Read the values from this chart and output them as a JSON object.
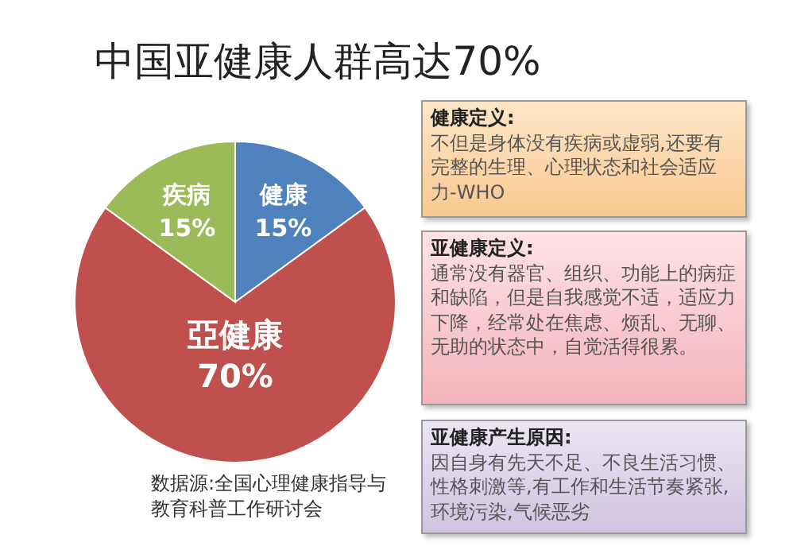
{
  "chart_data": [
    {
      "type": "pie",
      "title": "中国亚健康人群高达70%",
      "categories": [
        "健康",
        "亞健康",
        "疾病"
      ],
      "values": [
        15,
        70,
        15
      ],
      "colors": [
        "#4f81bd",
        "#c0504d",
        "#9bbb59"
      ],
      "value_labels": [
        "15%",
        "70%",
        "15%"
      ],
      "annotations": [
        "数据源:全国心理健康指导与教育科普工作研讨会"
      ]
    },
    {
      "type": "other",
      "title": "健康定义:",
      "annotations": [
        "不但是身体没有疾病或虚弱,还要有完整的生理、心理状态和社会适应力-WHO"
      ]
    },
    {
      "type": "other",
      "title": "亚健康定义:",
      "annotations": [
        "通常没有器官、组织、功能上的病症和缺陷，但是自我感觉不适，适应力下降，经常处在焦虑、烦乱、无聊、无助的状态中，自觉活得很累。"
      ]
    },
    {
      "type": "other",
      "title": "亚健康产生原因:",
      "annotations": [
        "因自身有先天不足、不良生活习惯、性格刺激等,有工作和生活节奏紧张,环境污染,气候恶劣"
      ]
    }
  ]
}
